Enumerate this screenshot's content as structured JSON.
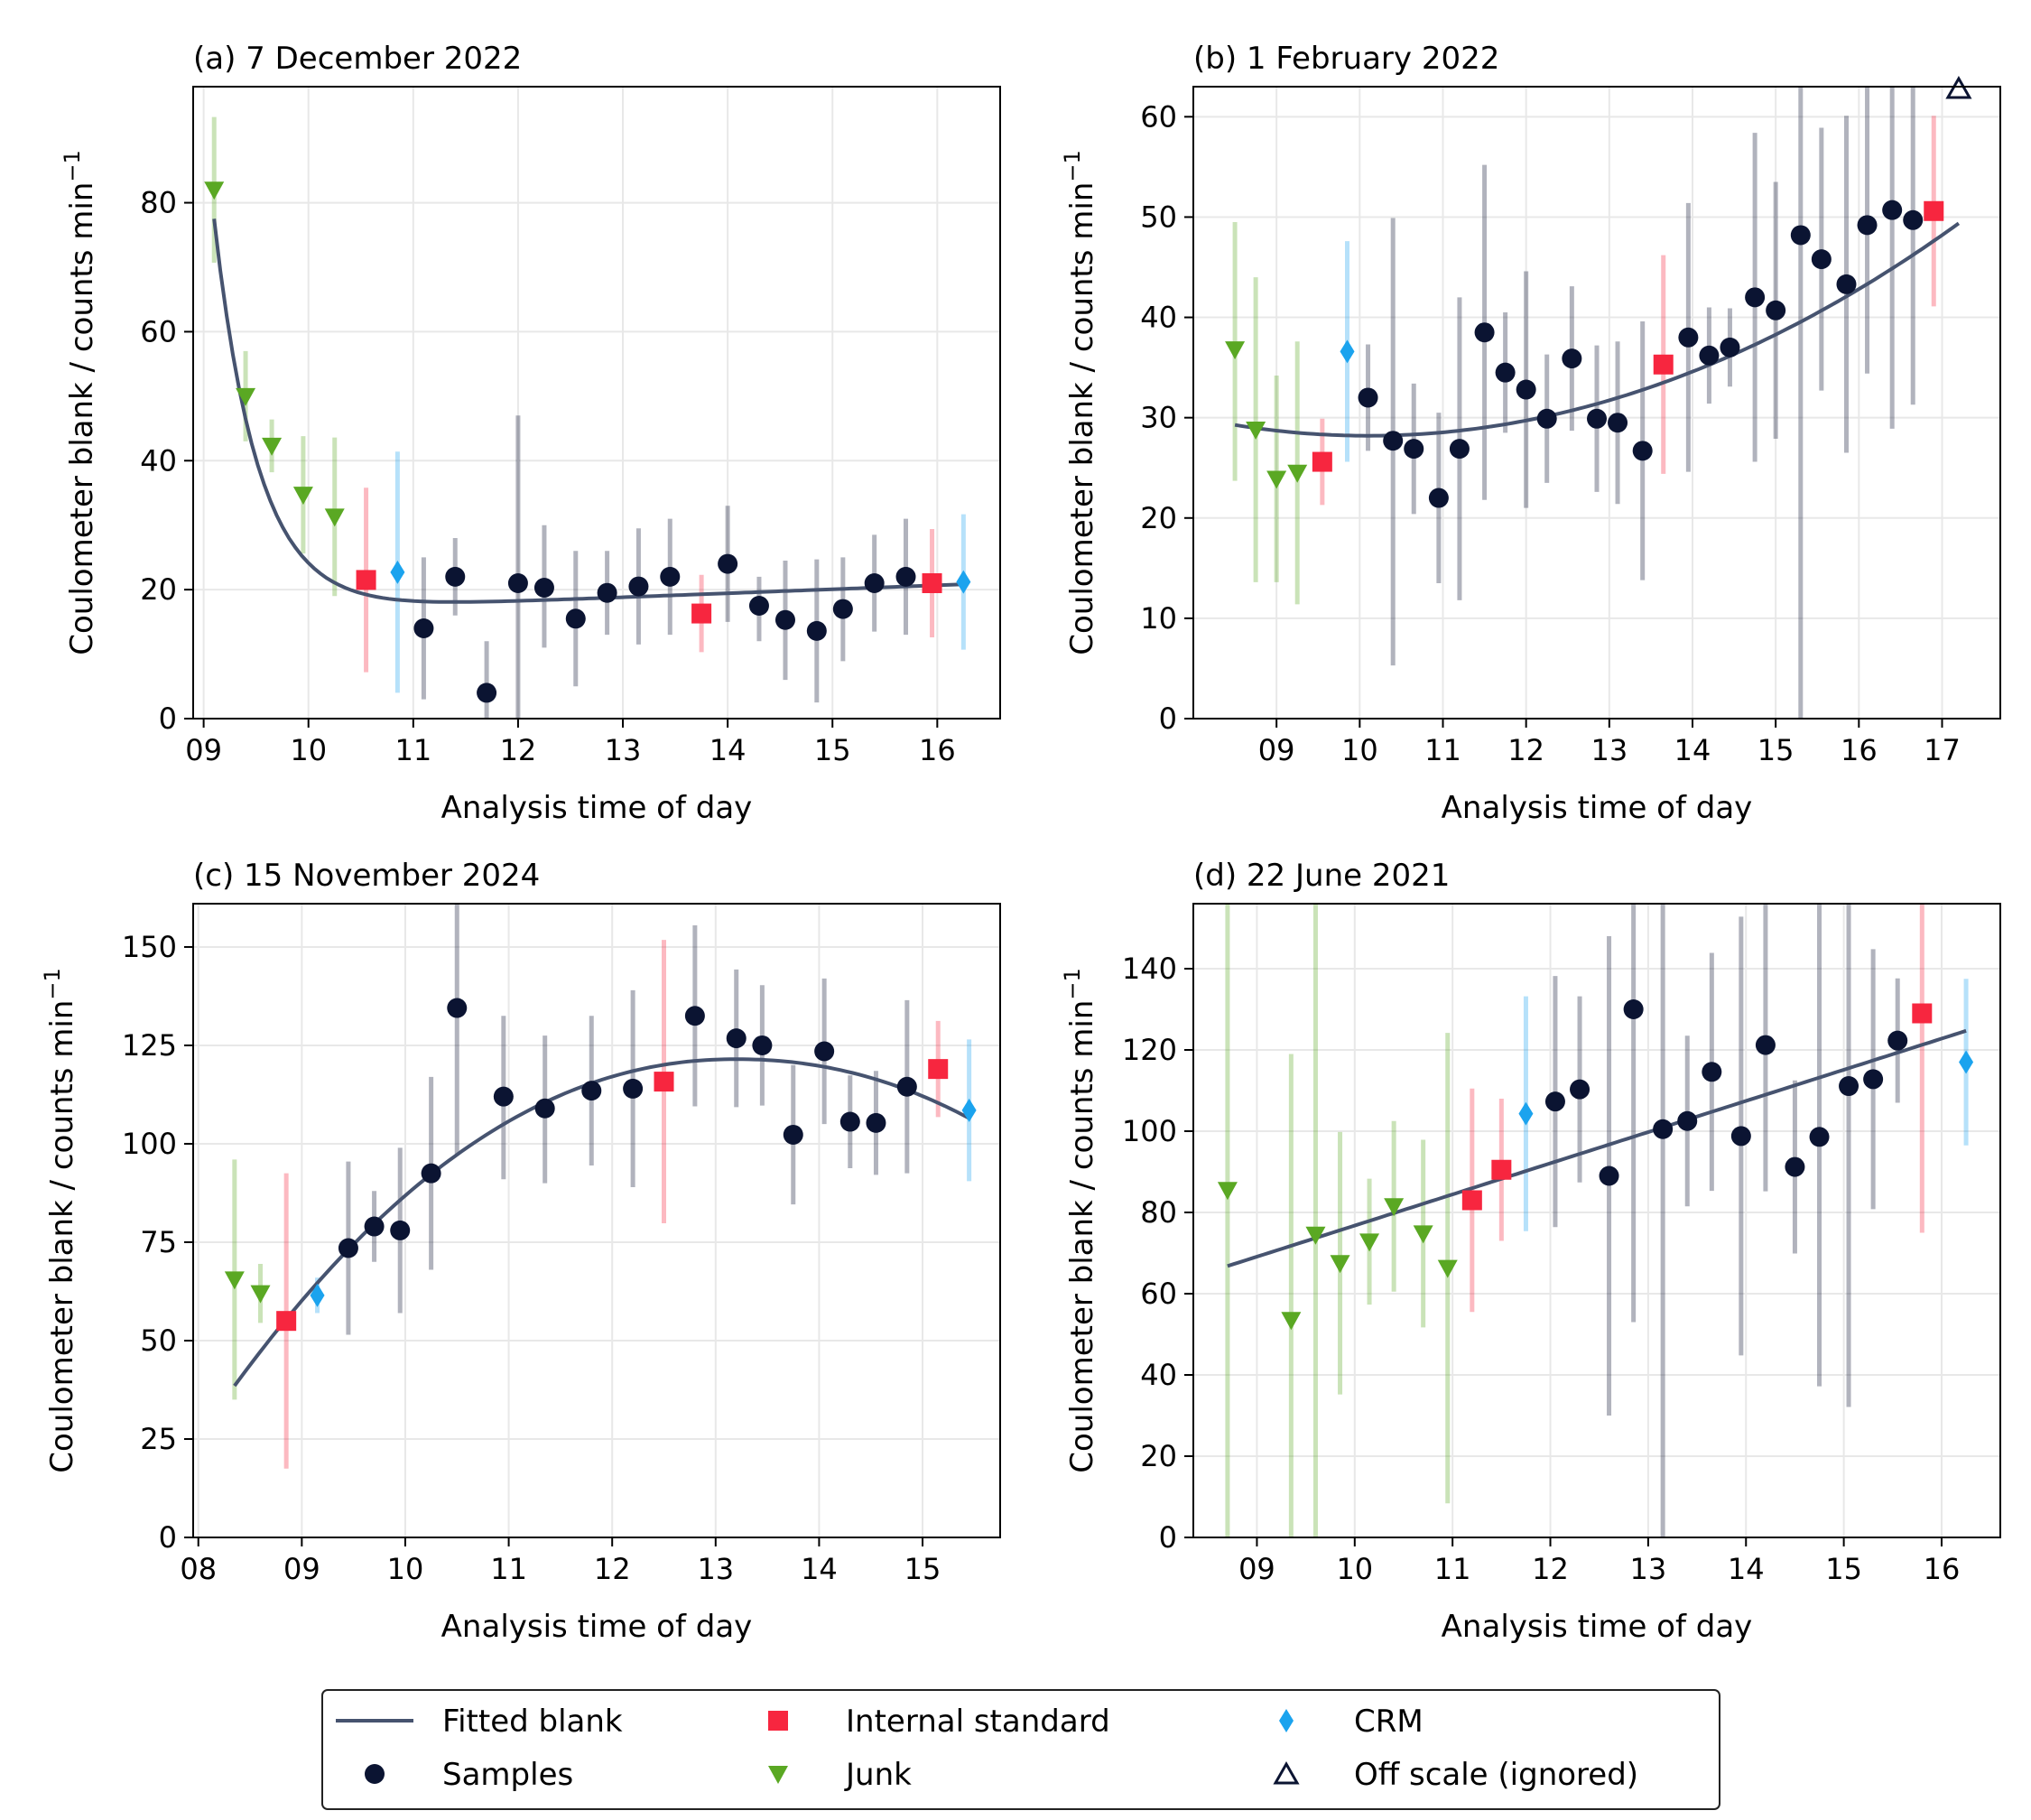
{
  "colors": {
    "fit": "#46536f",
    "samples": "#0b1432",
    "internal": "#f7263f",
    "junk": "#5aa823",
    "crm": "#1ba3ee",
    "offscale": "#0b1432",
    "grid": "#e8e8e8"
  },
  "legend": {
    "fit": "Fitted blank",
    "samples": "Samples",
    "internal": "Internal standard",
    "junk": "Junk",
    "crm": "CRM",
    "offscale": "Off scale (ignored)"
  },
  "chart_data": [
    {
      "type": "scatter",
      "title": "(a) 7 December 2022",
      "xlabel": "Analysis time of day",
      "ylabel": "Coulometer blank / counts min",
      "ylabel_sup": "−1",
      "xlim": [
        8.9,
        16.6
      ],
      "ylim": [
        0,
        98
      ],
      "xticks": [
        9,
        10,
        11,
        12,
        13,
        14,
        15,
        16
      ],
      "xtick_labels": [
        "09",
        "10",
        "11",
        "12",
        "13",
        "14",
        "15",
        "16"
      ],
      "yticks": [
        0,
        20,
        40,
        60,
        80
      ],
      "ytick_labels": [
        "0",
        "20",
        "40",
        "60",
        "80"
      ],
      "grid": true,
      "fit": {
        "model": "exp_decay_plus_linear",
        "x": [
          9.1,
          16.25
        ],
        "y": [
          77.5,
          20.3
        ]
      },
      "series": {
        "samples": [
          [
            11.1,
            14,
            25,
            3
          ],
          [
            11.4,
            22,
            28,
            16
          ],
          [
            11.7,
            4,
            12,
            0
          ],
          [
            12.0,
            21,
            47,
            0
          ],
          [
            12.25,
            20.3,
            30,
            11
          ],
          [
            12.55,
            15.5,
            26,
            5
          ],
          [
            12.85,
            19.5,
            26,
            13
          ],
          [
            13.15,
            20.5,
            29.5,
            11.5
          ],
          [
            13.45,
            22,
            31,
            13
          ],
          [
            14.0,
            24,
            33,
            15
          ],
          [
            14.3,
            17.5,
            22,
            12
          ],
          [
            14.55,
            15.3,
            24.5,
            6
          ],
          [
            14.85,
            13.6,
            24.7,
            2.5
          ],
          [
            15.1,
            17,
            25,
            8.9
          ],
          [
            15.4,
            21,
            28.5,
            13.5
          ],
          [
            15.7,
            22,
            31,
            13
          ]
        ],
        "internal": [
          [
            10.55,
            21.5,
            35.8,
            7.2
          ],
          [
            13.75,
            16.3,
            22.3,
            10.3
          ],
          [
            15.95,
            21,
            29.4,
            12.6
          ]
        ],
        "junk": [
          [
            9.1,
            82,
            93.3,
            70.7
          ],
          [
            9.4,
            50,
            57,
            43
          ],
          [
            9.65,
            42.3,
            46.4,
            38.2
          ],
          [
            9.95,
            34.7,
            43.8,
            25.6
          ],
          [
            10.25,
            31.3,
            43.6,
            19
          ]
        ],
        "crm": [
          [
            10.85,
            22.7,
            41.4,
            4
          ],
          [
            16.25,
            21.2,
            31.7,
            10.7
          ]
        ],
        "offscale": []
      }
    },
    {
      "type": "scatter",
      "title": "(b) 1 February 2022",
      "xlabel": "Analysis time of day",
      "ylabel": "Coulometer blank / counts min",
      "ylabel_sup": "−1",
      "xlim": [
        8.0,
        17.7
      ],
      "ylim": [
        0,
        63
      ],
      "xticks": [
        9,
        10,
        11,
        12,
        13,
        14,
        15,
        16,
        17
      ],
      "xtick_labels": [
        "09",
        "10",
        "11",
        "12",
        "13",
        "14",
        "15",
        "16",
        "17"
      ],
      "yticks": [
        0,
        10,
        20,
        30,
        40,
        50,
        60
      ],
      "ytick_labels": [
        "0",
        "10",
        "20",
        "30",
        "40",
        "50",
        "60"
      ],
      "grid": true,
      "fit": {
        "model": "quadratic",
        "x": [
          8.5,
          17.2
        ],
        "y": [
          29.2,
          52.6
        ]
      },
      "series": {
        "samples": [
          [
            10.1,
            32,
            37.3,
            26.7
          ],
          [
            10.4,
            27.7,
            49.9,
            5.3
          ],
          [
            10.65,
            26.9,
            33.4,
            20.4
          ],
          [
            10.95,
            22,
            30.5,
            13.5
          ],
          [
            11.2,
            26.9,
            42,
            11.8
          ],
          [
            11.5,
            38.5,
            55.2,
            21.8
          ],
          [
            11.75,
            34.5,
            40.5,
            28.5
          ],
          [
            12.0,
            32.8,
            44.6,
            21
          ],
          [
            12.25,
            29.9,
            36.3,
            23.5
          ],
          [
            12.55,
            35.9,
            43.1,
            28.7
          ],
          [
            12.85,
            29.9,
            37.2,
            22.6
          ],
          [
            13.1,
            29.5,
            37.6,
            21.4
          ],
          [
            13.4,
            26.7,
            39.6,
            13.8
          ],
          [
            13.95,
            38,
            51.4,
            24.6
          ],
          [
            14.2,
            36.2,
            41,
            31.4
          ],
          [
            14.45,
            37,
            40.9,
            33.1
          ],
          [
            14.75,
            42,
            58.4,
            25.6
          ],
          [
            15.0,
            40.7,
            53.5,
            27.9
          ],
          [
            15.3,
            48.2,
            63,
            0
          ],
          [
            15.55,
            45.8,
            58.9,
            32.7
          ],
          [
            15.85,
            43.3,
            60.1,
            26.5
          ],
          [
            16.1,
            49.2,
            63,
            34.4
          ],
          [
            16.4,
            50.7,
            63,
            28.9
          ],
          [
            16.65,
            49.7,
            63,
            31.3
          ]
        ],
        "internal": [
          [
            9.55,
            25.6,
            29.9,
            21.3
          ],
          [
            13.65,
            35.3,
            46.2,
            24.4
          ],
          [
            16.9,
            50.6,
            60.1,
            41.1
          ]
        ],
        "junk": [
          [
            8.5,
            36.8,
            49.5,
            23.7
          ],
          [
            8.75,
            28.8,
            44,
            13.6
          ],
          [
            9.0,
            23.9,
            34.2,
            13.6
          ],
          [
            9.25,
            24.5,
            37.6,
            11.4
          ]
        ],
        "crm": [
          [
            9.85,
            36.6,
            47.6,
            25.6
          ]
        ],
        "offscale": [
          [
            17.2,
            63
          ]
        ]
      }
    },
    {
      "type": "scatter",
      "title": "(c) 15 November 2024",
      "xlabel": "Analysis time of day",
      "ylabel": "Coulometer blank / counts min",
      "ylabel_sup": "−1",
      "xlim": [
        7.95,
        15.75
      ],
      "ylim": [
        0,
        161
      ],
      "xticks": [
        8,
        9,
        10,
        11,
        12,
        13,
        14,
        15
      ],
      "xtick_labels": [
        "08",
        "09",
        "10",
        "11",
        "12",
        "13",
        "14",
        "15"
      ],
      "yticks": [
        0,
        25,
        50,
        75,
        100,
        125,
        150
      ],
      "ytick_labels": [
        "0",
        "25",
        "50",
        "75",
        "100",
        "125",
        "150"
      ],
      "grid": true,
      "fit": {
        "model": "cubic",
        "x": [
          8.35,
          15.45
        ],
        "y": [
          38.5,
          106.5
        ]
      },
      "series": {
        "samples": [
          [
            9.45,
            73.5,
            95.5,
            51.5
          ],
          [
            9.7,
            79,
            88,
            70
          ],
          [
            9.95,
            78,
            99,
            57
          ],
          [
            10.25,
            92.5,
            117,
            68
          ],
          [
            10.5,
            134.5,
            161,
            97
          ],
          [
            10.95,
            112,
            132.5,
            91
          ],
          [
            11.35,
            109,
            127.5,
            90
          ],
          [
            11.8,
            113.5,
            132.5,
            94.5
          ],
          [
            12.2,
            114,
            139,
            89
          ],
          [
            12.8,
            132.5,
            155.5,
            109.5
          ],
          [
            13.2,
            126.8,
            144.3,
            109.3
          ],
          [
            13.45,
            125,
            140.3,
            109.7
          ],
          [
            13.75,
            102.3,
            120,
            84.6
          ],
          [
            14.05,
            123.5,
            142,
            105
          ],
          [
            14.3,
            105.6,
            117.4,
            93.8
          ],
          [
            14.55,
            105.3,
            118.5,
            92.1
          ],
          [
            14.85,
            114.5,
            136.5,
            92.5
          ]
        ],
        "internal": [
          [
            8.85,
            55,
            92.5,
            17.5
          ],
          [
            12.5,
            115.8,
            151.8,
            79.8
          ],
          [
            15.15,
            119,
            131.2,
            106.8
          ]
        ],
        "junk": [
          [
            8.35,
            65.5,
            96,
            35
          ],
          [
            8.6,
            62,
            69.5,
            54.5
          ]
        ],
        "crm": [
          [
            9.15,
            61.5,
            66,
            57
          ],
          [
            15.45,
            108.5,
            126.5,
            90.5
          ]
        ],
        "offscale": []
      }
    },
    {
      "type": "scatter",
      "title": "(d) 22 June 2021",
      "xlabel": "Analysis time of day",
      "ylabel": "Coulometer blank / counts min",
      "ylabel_sup": "−1",
      "xlim": [
        8.35,
        16.6
      ],
      "ylim": [
        0,
        156
      ],
      "xticks": [
        9,
        10,
        11,
        12,
        13,
        14,
        15,
        16
      ],
      "xtick_labels": [
        "09",
        "10",
        "11",
        "12",
        "13",
        "14",
        "15",
        "16"
      ],
      "yticks": [
        0,
        20,
        40,
        60,
        80,
        100,
        120,
        140
      ],
      "ytick_labels": [
        "0",
        "20",
        "40",
        "60",
        "80",
        "100",
        "120",
        "140"
      ],
      "grid": true,
      "fit": {
        "model": "linear",
        "x": [
          8.7,
          16.25
        ],
        "y": [
          66.8,
          124.7
        ]
      },
      "series": {
        "samples": [
          [
            12.05,
            107.3,
            138.2,
            76.4
          ],
          [
            12.3,
            110.3,
            133.2,
            87.4
          ],
          [
            12.6,
            89,
            148,
            30
          ],
          [
            12.85,
            130,
            156,
            53
          ],
          [
            13.15,
            100.5,
            156,
            0
          ],
          [
            13.4,
            102.5,
            123.5,
            81.5
          ],
          [
            13.65,
            114.6,
            143.9,
            85.3
          ],
          [
            13.95,
            98.8,
            152.8,
            44.8
          ],
          [
            14.2,
            121.2,
            156,
            85.2
          ],
          [
            14.5,
            91.2,
            112.5,
            69.9
          ],
          [
            14.75,
            98.6,
            156,
            37.2
          ],
          [
            15.05,
            111.1,
            156,
            32.1
          ],
          [
            15.3,
            112.8,
            144.8,
            80.8
          ],
          [
            15.55,
            122.3,
            137.6,
            107
          ]
        ],
        "internal": [
          [
            11.2,
            83,
            110.5,
            55.5
          ],
          [
            11.5,
            90.5,
            108,
            73
          ],
          [
            15.8,
            129,
            156,
            75
          ]
        ],
        "junk": [
          [
            8.7,
            85.5,
            156,
            0
          ],
          [
            9.35,
            53.5,
            119,
            0
          ],
          [
            9.6,
            74.5,
            156,
            0
          ],
          [
            9.85,
            67.5,
            99.8,
            35.2
          ],
          [
            10.15,
            72.8,
            88.3,
            57.3
          ],
          [
            10.4,
            81.5,
            102.5,
            60.5
          ],
          [
            10.7,
            74.8,
            97.9,
            51.7
          ],
          [
            10.95,
            66.3,
            124.2,
            8.4
          ]
        ],
        "crm": [
          [
            11.75,
            104.3,
            133.2,
            75.4
          ],
          [
            16.25,
            117,
            137.5,
            96.5
          ]
        ],
        "offscale": []
      }
    }
  ]
}
